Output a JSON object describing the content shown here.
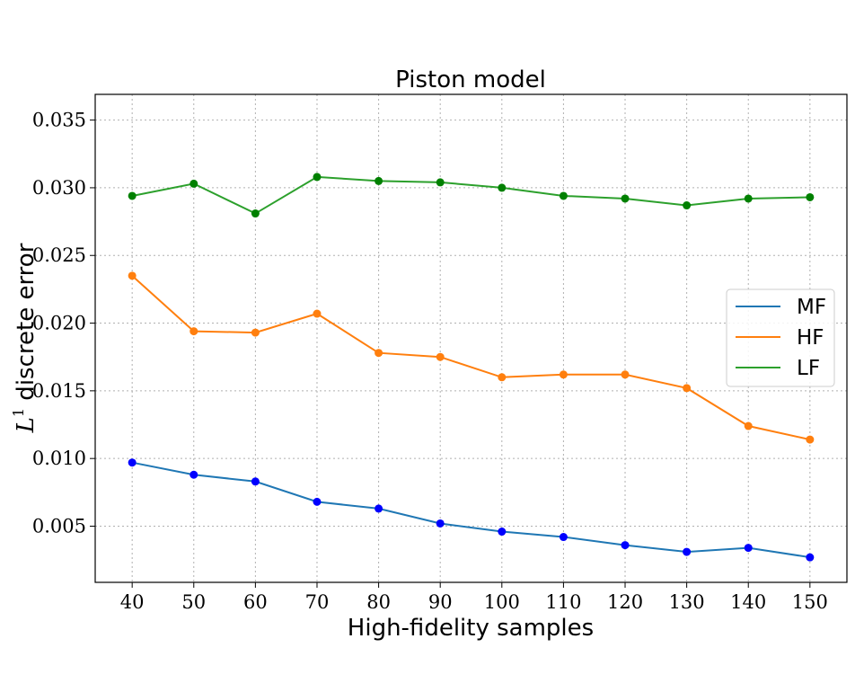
{
  "chart_data": {
    "type": "line",
    "title": "Piston model",
    "xlabel": "High-fidelity samples",
    "ylabel_main": "L",
    "ylabel_sup": "1",
    "ylabel_rest": " discrete error",
    "x": [
      40,
      50,
      60,
      70,
      80,
      90,
      100,
      110,
      120,
      130,
      140,
      150
    ],
    "xtick_labels": [
      "40",
      "50",
      "60",
      "70",
      "80",
      "90",
      "100",
      "110",
      "120",
      "130",
      "140",
      "150"
    ],
    "ytick_values": [
      0.005,
      0.01,
      0.015,
      0.02,
      0.025,
      0.03,
      0.035
    ],
    "ytick_labels": [
      "0.005",
      "0.010",
      "0.015",
      "0.020",
      "0.025",
      "0.030",
      "0.035"
    ],
    "xlim": [
      34,
      156
    ],
    "ylim": [
      0.00085,
      0.0369
    ],
    "grid": true,
    "legend_position": "center-right",
    "series": [
      {
        "name": "MF",
        "color": "#1f77b4",
        "marker_color": "#0000ff",
        "values": [
          0.0097,
          0.0088,
          0.0083,
          0.0068,
          0.0063,
          0.0052,
          0.0046,
          0.0042,
          0.0036,
          0.0031,
          0.0034,
          0.0027
        ]
      },
      {
        "name": "HF",
        "color": "#ff7f0e",
        "marker_color": "#ff7f0e",
        "values": [
          0.0235,
          0.0194,
          0.0193,
          0.0207,
          0.0178,
          0.0175,
          0.016,
          0.0162,
          0.0162,
          0.0152,
          0.0124,
          0.0114
        ]
      },
      {
        "name": "LF",
        "color": "#2ca02c",
        "marker_color": "#008000",
        "values": [
          0.0294,
          0.0303,
          0.0281,
          0.0308,
          0.0305,
          0.0304,
          0.03,
          0.0294,
          0.0292,
          0.0287,
          0.0292,
          0.0293
        ]
      }
    ]
  }
}
